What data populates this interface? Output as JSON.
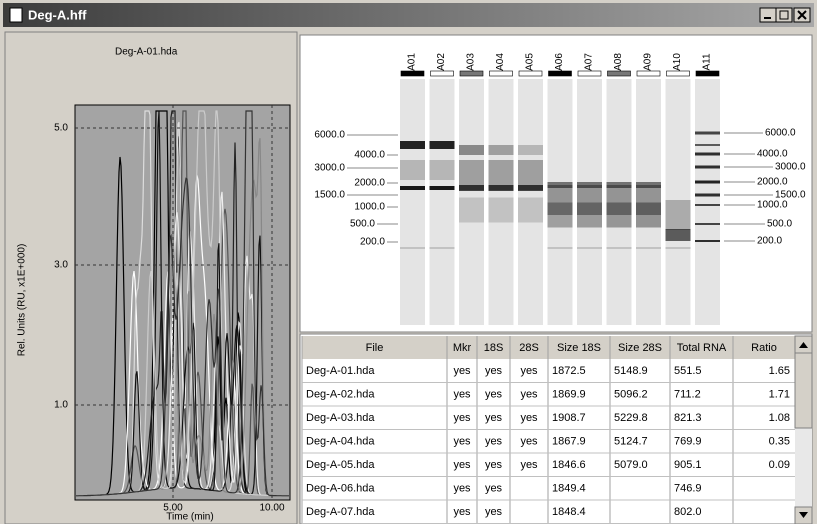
{
  "window": {
    "title": "Deg-A.hff"
  },
  "electropherogram": {
    "title": "Deg-A-01.hda",
    "y_label": "Rel. Units (RU, x1E+000)",
    "y_ticks": [
      "5.0",
      "3.0",
      "1.0"
    ],
    "x_ticks": [
      "5.00",
      "10.00"
    ],
    "x_label": "Time (min)"
  },
  "gel": {
    "lanes": [
      "A01",
      "A02",
      "A03",
      "A04",
      "A05",
      "A06",
      "A07",
      "A08",
      "A09",
      "A10",
      "A11"
    ],
    "ladder_left": [
      "6000.0",
      "4000.0",
      "3000.0",
      "2000.0",
      "1500.0",
      "1000.0",
      "500.0",
      "200.0"
    ],
    "ladder_right": [
      "6000.0",
      "4000.0",
      "3000.0",
      "2000.0",
      "1500.0",
      "1000.0",
      "500.0",
      "200.0"
    ]
  },
  "table": {
    "columns": [
      "File",
      "Mkr",
      "18S",
      "28S",
      "Size 18S",
      "Size 28S",
      "Total RNA",
      "Ratio"
    ],
    "rows": [
      [
        "Deg-A-01.hda",
        "yes",
        "yes",
        "yes",
        "1872.5",
        "5148.9",
        "551.5",
        "1.65"
      ],
      [
        "Deg-A-02.hda",
        "yes",
        "yes",
        "yes",
        "1869.9",
        "5096.2",
        "711.2",
        "1.71"
      ],
      [
        "Deg-A-03.hda",
        "yes",
        "yes",
        "yes",
        "1908.7",
        "5229.8",
        "821.3",
        "1.08"
      ],
      [
        "Deg-A-04.hda",
        "yes",
        "yes",
        "yes",
        "1867.9",
        "5124.7",
        "769.9",
        "0.35"
      ],
      [
        "Deg-A-05.hda",
        "yes",
        "yes",
        "yes",
        "1846.6",
        "5079.0",
        "905.1",
        "0.09"
      ],
      [
        "Deg-A-06.hda",
        "yes",
        "yes",
        null,
        "1849.4",
        null,
        "746.9",
        null
      ],
      [
        "Deg-A-07.hda",
        "yes",
        "yes",
        null,
        "1848.4",
        null,
        "802.0",
        null
      ]
    ]
  }
}
